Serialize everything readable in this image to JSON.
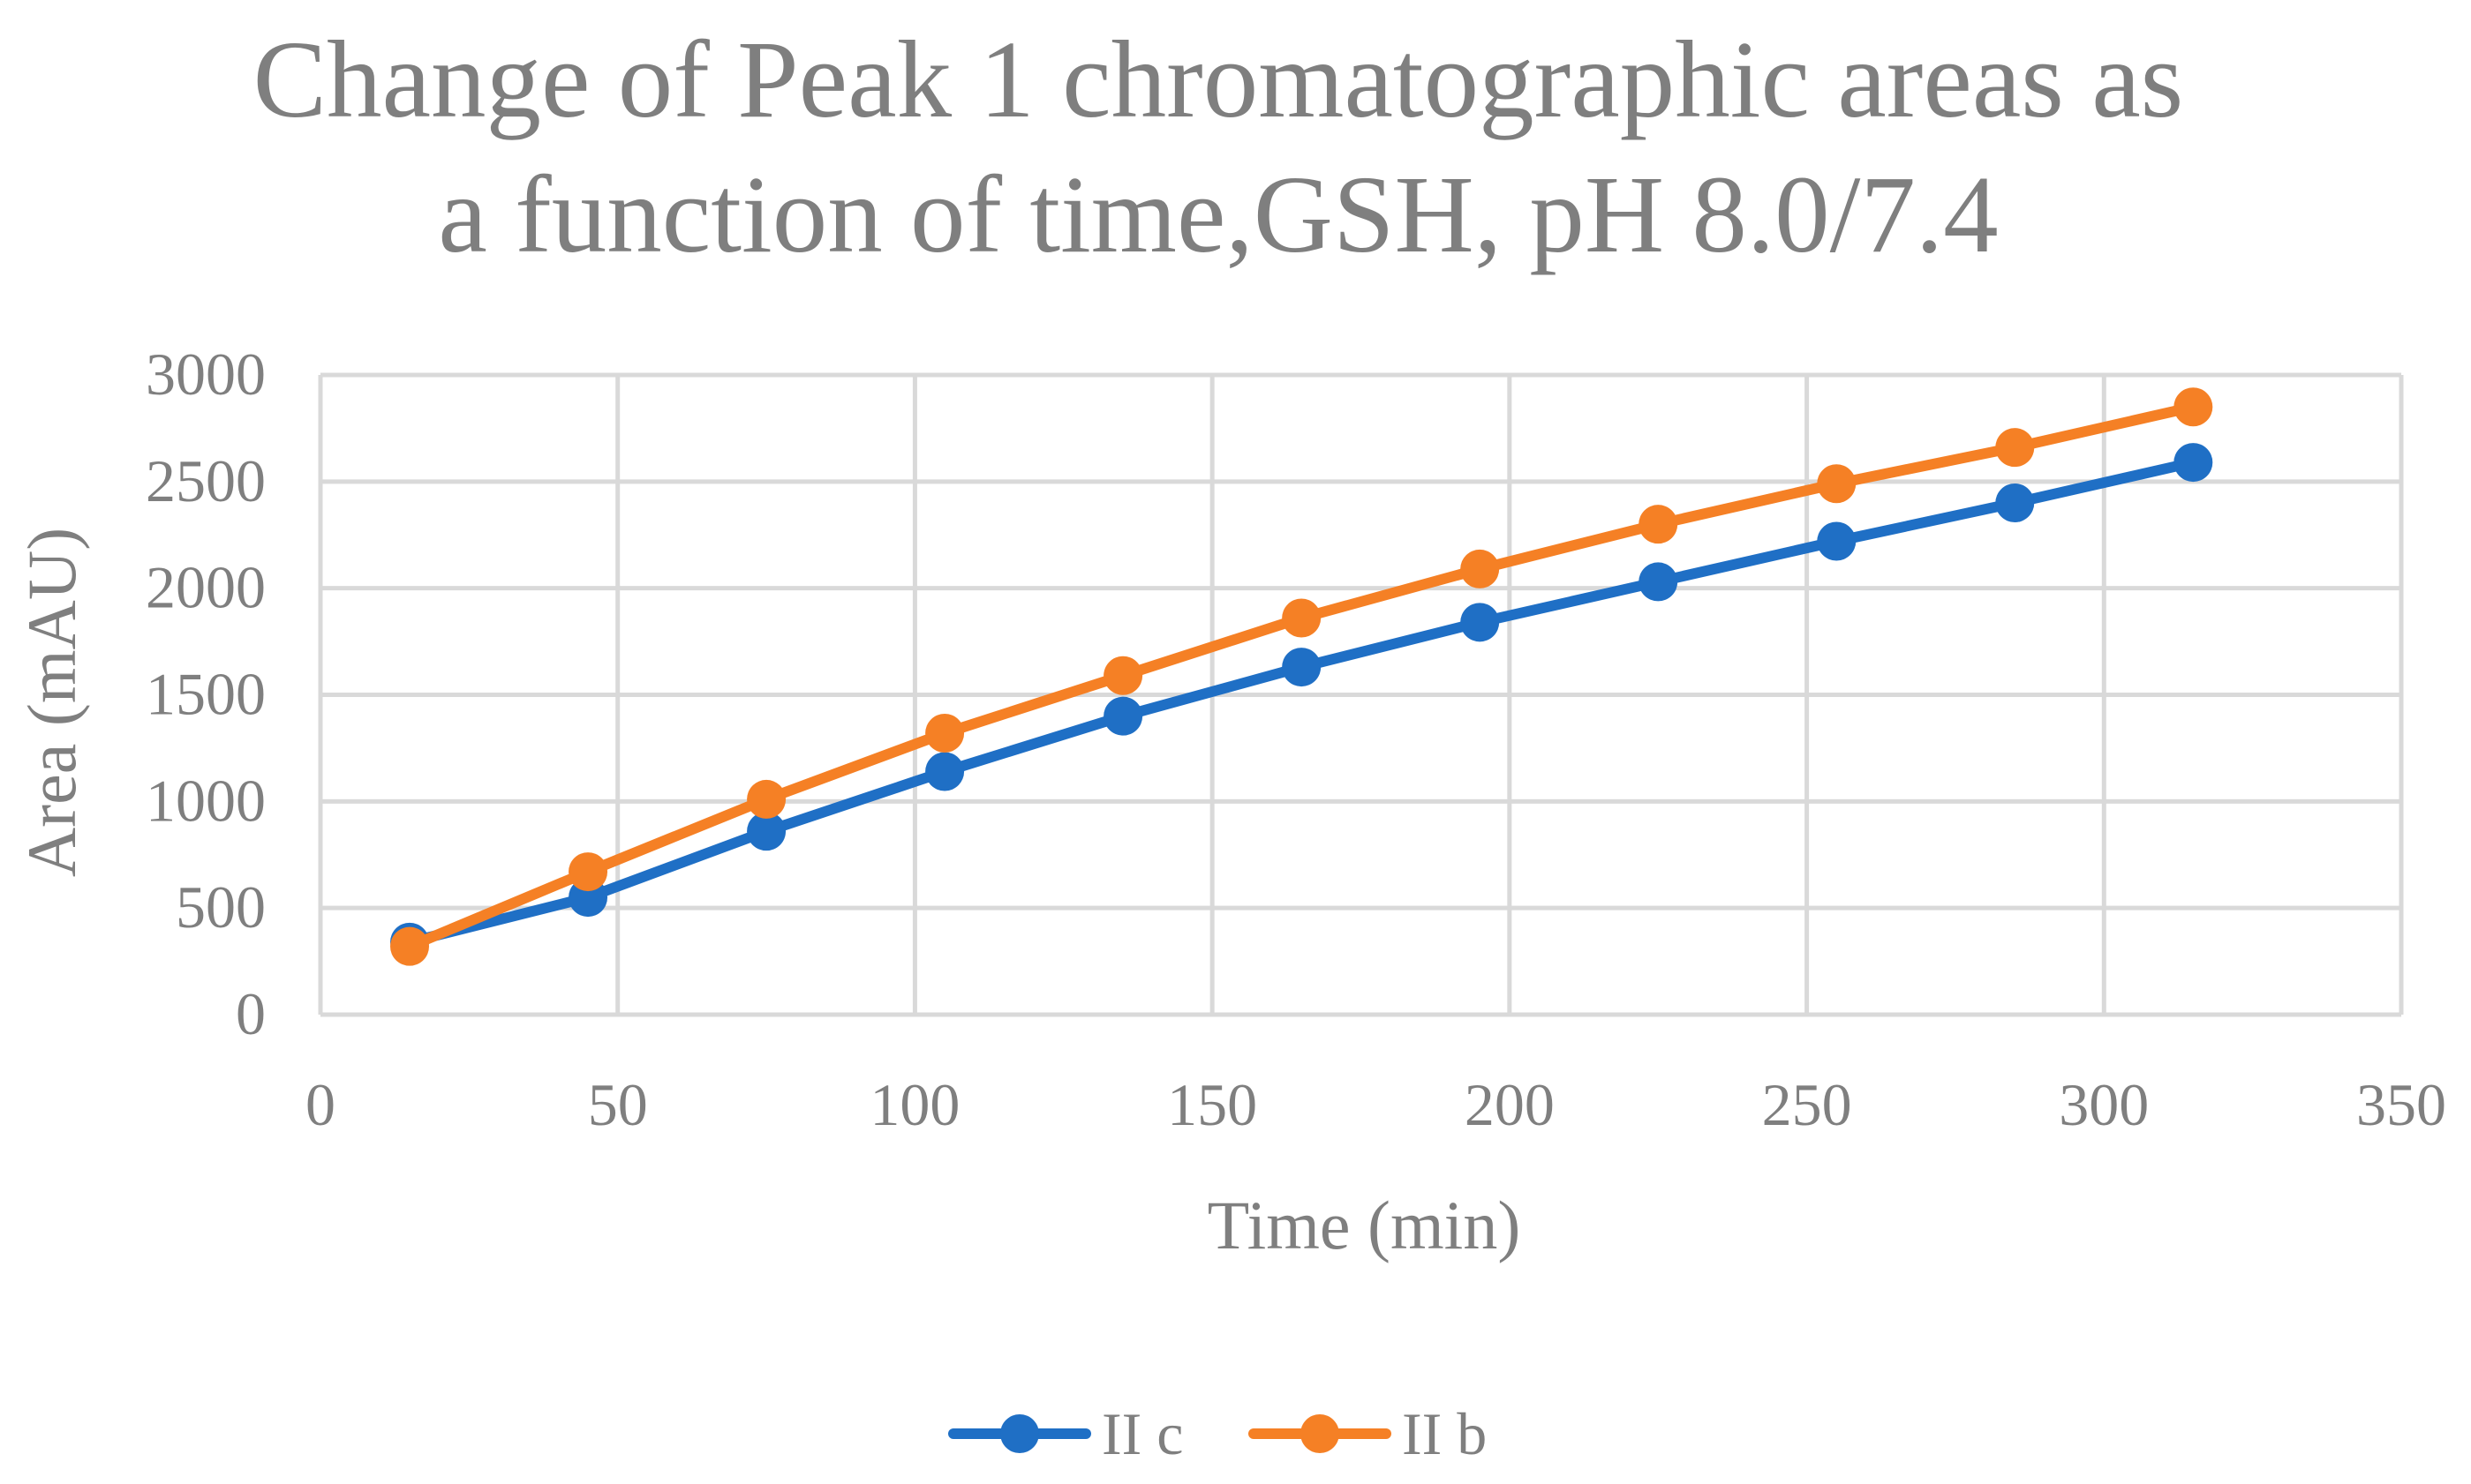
{
  "chart_data": {
    "type": "line",
    "title_lines": [
      "Change of Peak 1 chromatographic areas as",
      "a function of time,GSH, pH 8.0/7.4"
    ],
    "xlabel": "Time (min)",
    "ylabel": "Area (mAU)",
    "xlim": [
      0,
      350
    ],
    "ylim": [
      0,
      3000
    ],
    "x_ticks": [
      0,
      50,
      100,
      150,
      200,
      250,
      300,
      350
    ],
    "y_ticks": [
      0,
      500,
      1000,
      1500,
      2000,
      2500,
      3000
    ],
    "grid": true,
    "legend_position": "bottom",
    "series": [
      {
        "name": "II c",
        "color": "#1f6fc5",
        "x": [
          15,
          45,
          75,
          105,
          135,
          165,
          195,
          225,
          255,
          285,
          315
        ],
        "values": [
          340,
          550,
          860,
          1140,
          1400,
          1630,
          1840,
          2030,
          2220,
          2400,
          2590
        ]
      },
      {
        "name": "II b",
        "color": "#f58025",
        "x": [
          15,
          45,
          75,
          105,
          135,
          165,
          195,
          225,
          255,
          285,
          315
        ],
        "values": [
          320,
          670,
          1010,
          1320,
          1590,
          1860,
          2090,
          2300,
          2490,
          2660,
          2850
        ]
      }
    ]
  }
}
